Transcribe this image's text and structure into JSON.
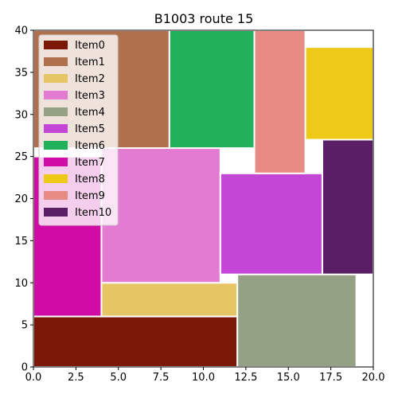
{
  "chart_data": {
    "type": "bar",
    "title": "B1003 route 15",
    "xlabel": "",
    "ylabel": "",
    "xlim": [
      0,
      20
    ],
    "ylim": [
      0,
      40
    ],
    "xticks": [
      "0.0",
      "2.5",
      "5.0",
      "7.5",
      "10.0",
      "12.5",
      "15.0",
      "17.5",
      "20.0"
    ],
    "yticks": [
      "0",
      "5",
      "10",
      "15",
      "20",
      "25",
      "30",
      "35",
      "40"
    ],
    "grid": false,
    "legend_position": "top-left",
    "series": [
      {
        "name": "Item0",
        "color": "#7b1808",
        "x": 0,
        "y": 0,
        "w": 12,
        "h": 6
      },
      {
        "name": "Item1",
        "color": "#b0704c",
        "x": 0,
        "y": 26,
        "w": 8,
        "h": 14
      },
      {
        "name": "Item2",
        "color": "#e6c564",
        "x": 4,
        "y": 6,
        "w": 8,
        "h": 4
      },
      {
        "name": "Item3",
        "color": "#e47bd2",
        "x": 4,
        "y": 10,
        "w": 7,
        "h": 16
      },
      {
        "name": "Item4",
        "color": "#95a185",
        "x": 12,
        "y": 0,
        "w": 7,
        "h": 11
      },
      {
        "name": "Item5",
        "color": "#c346d6",
        "x": 11,
        "y": 11,
        "w": 6,
        "h": 12
      },
      {
        "name": "Item6",
        "color": "#20b15a",
        "x": 8,
        "y": 26,
        "w": 5,
        "h": 14
      },
      {
        "name": "Item7",
        "color": "#d10ca6",
        "x": 0,
        "y": 6,
        "w": 4,
        "h": 19
      },
      {
        "name": "Item8",
        "color": "#eec918",
        "x": 16,
        "y": 27,
        "w": 4,
        "h": 11
      },
      {
        "name": "Item9",
        "color": "#e68c82",
        "x": 13,
        "y": 23,
        "w": 3,
        "h": 17
      },
      {
        "name": "Item10",
        "color": "#5a1e64",
        "x": 17,
        "y": 11,
        "w": 3,
        "h": 16
      }
    ]
  }
}
